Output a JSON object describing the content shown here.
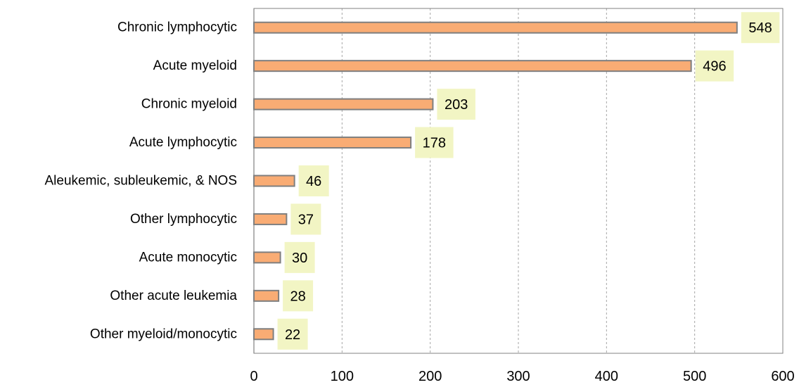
{
  "chart_data": {
    "type": "bar",
    "orientation": "horizontal",
    "categories": [
      "Chronic lymphocytic",
      "Acute myeloid",
      "Chronic myeloid",
      "Acute lymphocytic",
      "Aleukemic, subleukemic, & NOS",
      "Other lymphocytic",
      "Acute monocytic",
      "Other acute leukemia",
      "Other myeloid/monocytic"
    ],
    "values": [
      548,
      496,
      203,
      178,
      46,
      37,
      30,
      28,
      22
    ],
    "xlim": [
      0,
      600
    ],
    "xticks": [
      0,
      100,
      200,
      300,
      400,
      500,
      600
    ],
    "grid": "vertical dashed",
    "legend": "none",
    "title": "",
    "xlabel": "",
    "ylabel": "",
    "colors": {
      "bar_fill": "#F9AC74",
      "bar_stroke": "#7F7F7F",
      "label_box": "#F2F5C4",
      "grid": "#A6A6A6",
      "axis": "#808080"
    }
  }
}
